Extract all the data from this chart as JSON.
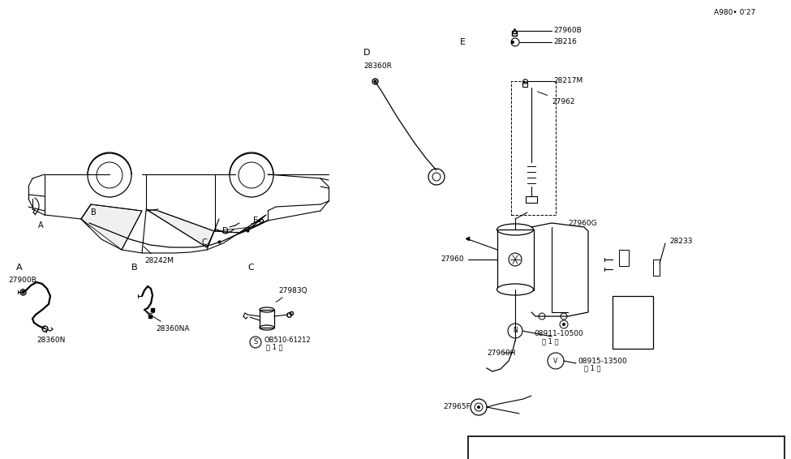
{
  "bg_color": "#ffffff",
  "line_color": "#000000",
  "fig_width": 9.75,
  "fig_height": 5.66,
  "labels": {
    "main_car": "28242M",
    "part_27900B": "27900B",
    "part_28360N": "28360N",
    "part_28360NA": "28360NA",
    "part_27983Q": "27983Q",
    "part_28360R": "28360R",
    "part_27960B": "27960B",
    "part_2B216": "2B216",
    "part_28217M": "28217M",
    "part_27962": "27962",
    "part_27960G": "27960G",
    "part_28233": "28233",
    "part_27960": "27960",
    "part_27960H": "27960H",
    "part_08911_10500": "08911-10500",
    "part_08915_13500": "08915-13500",
    "part_27965F": "27965F",
    "watermark": "A980• 0'27"
  }
}
